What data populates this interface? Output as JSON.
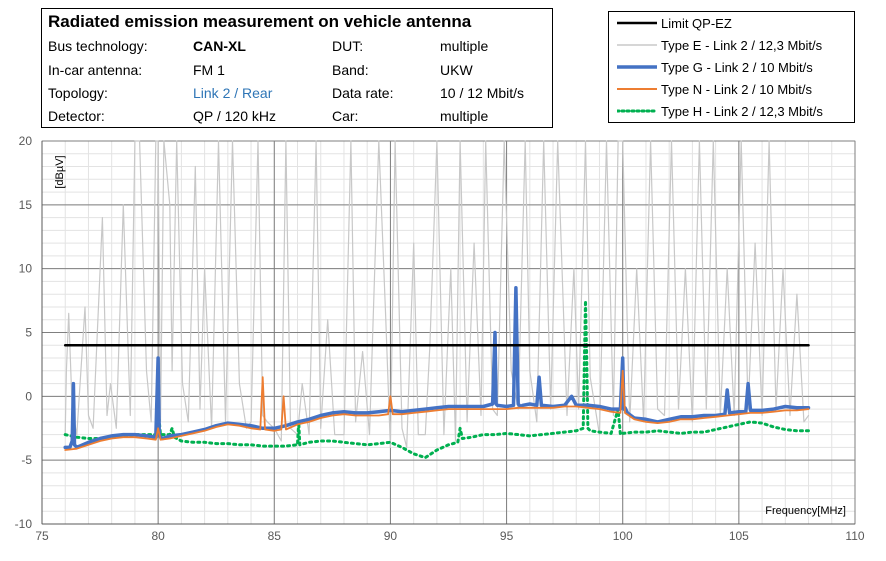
{
  "info": {
    "title": "Radiated emission measurement on vehicle antenna",
    "rows": [
      {
        "label": "Bus technology:",
        "value": "CAN-XL",
        "label2": "DUT:",
        "value2": "multiple"
      },
      {
        "label": "In-car antenna:",
        "value": "FM 1",
        "label2": "Band:",
        "value2": "UKW"
      },
      {
        "label": "Topology:",
        "value": "Link 2 / Rear",
        "label2": "Data rate:",
        "value2": "10 / 12 Mbit/s"
      },
      {
        "label": "Detector:",
        "value": "QP / 120 kHz",
        "label2": "Car:",
        "value2": "multiple"
      }
    ]
  },
  "legend": [
    {
      "label": "Limit QP-EZ"
    },
    {
      "label": "Type E - Link 2 / 12,3 Mbit/s"
    },
    {
      "label": "Type G - Link 2 / 10 Mbit/s"
    },
    {
      "label": "Type N - Link 2 / 10 Mbit/s"
    },
    {
      "label": "Type H - Link 2 / 12,3 Mbit/s"
    }
  ],
  "chart_data": {
    "type": "line",
    "title": "Radiated emission measurement on vehicle antenna",
    "xlabel": "Frequency[MHz]",
    "ylabel": "[dBµV]",
    "xlim": [
      75,
      110
    ],
    "ylim": [
      -10,
      20
    ],
    "xticks": [
      75,
      80,
      85,
      90,
      95,
      100,
      105,
      110
    ],
    "yticks": [
      -10,
      -5,
      0,
      5,
      10,
      15,
      20
    ],
    "grid": true,
    "legend_position": "top-right",
    "series": [
      {
        "name": "Limit QP-EZ",
        "color": "#000000",
        "style": "solid",
        "x": [
          76,
          108
        ],
        "y": [
          4,
          4
        ]
      },
      {
        "name": "Type E - Link 2 / 12,3 Mbit/s",
        "color": "#c8c8c8",
        "style": "solid",
        "x": [
          76.0,
          76.05,
          76.15,
          76.3,
          76.5,
          76.85,
          77.0,
          77.2,
          77.6,
          77.8,
          77.95,
          78.2,
          78.5,
          78.8,
          79.0,
          79.2,
          79.5,
          79.7,
          79.9,
          80.0,
          80.1,
          80.25,
          80.5,
          80.6,
          80.8,
          81.05,
          81.3,
          81.6,
          81.8,
          82.0,
          82.3,
          82.6,
          82.9,
          83.2,
          83.5,
          83.8,
          84.0,
          84.3,
          84.5,
          84.7,
          85.0,
          85.3,
          85.5,
          85.7,
          86.0,
          86.2,
          86.5,
          86.8,
          87.0,
          87.3,
          87.6,
          88.0,
          88.3,
          88.5,
          88.8,
          89.1,
          89.5,
          89.8,
          90.0,
          90.2,
          90.5,
          90.7,
          91.0,
          91.2,
          91.5,
          91.7,
          92.0,
          92.3,
          92.6,
          92.8,
          93.0,
          93.3,
          93.6,
          93.9,
          94.1,
          94.4,
          94.6,
          94.9,
          95.2,
          95.5,
          95.8,
          96.0,
          96.3,
          96.6,
          96.9,
          97.2,
          97.6,
          97.9,
          98.1,
          98.4,
          98.6,
          99.0,
          99.3,
          99.6,
          99.8,
          100.0,
          100.3,
          100.6,
          100.9,
          101.2,
          101.5,
          101.8,
          102.1,
          102.4,
          102.7,
          103.0,
          103.3,
          103.6,
          103.9,
          104.2,
          104.5,
          104.8,
          105.1,
          105.4,
          105.7,
          106.0,
          106.3,
          106.6,
          106.9,
          107.2,
          107.5,
          107.8,
          108.0
        ],
        "y": [
          -3.0,
          2.0,
          6.5,
          -1.0,
          -3.0,
          7.0,
          -1.5,
          -2.5,
          14.0,
          -1.5,
          1.0,
          -2.5,
          15.0,
          -1.5,
          20.0,
          20.0,
          2.0,
          -2.0,
          20.0,
          20.0,
          -2.0,
          20.0,
          15.0,
          2.0,
          20.0,
          1.0,
          -2.0,
          18.0,
          -1.0,
          10.0,
          -2.5,
          20.0,
          -2.0,
          20.0,
          1.0,
          -2.5,
          -2.0,
          20.0,
          -1.5,
          -2.0,
          -2.5,
          -3.5,
          20.0,
          -2.5,
          -3.0,
          1.0,
          -3.0,
          20.0,
          -2.5,
          6.0,
          -3.0,
          -3.0,
          20.0,
          -2.0,
          3.5,
          -3.0,
          20.0,
          6.0,
          -4.0,
          20.0,
          -2.5,
          -4.0,
          12.0,
          -3.0,
          -3.0,
          4.0,
          20.0,
          -3.0,
          10.0,
          -3.5,
          20.0,
          -2.0,
          12.0,
          -1.5,
          20.0,
          -1.0,
          -1.5,
          20.0,
          2.0,
          -1.0,
          20.0,
          2.0,
          -2.0,
          20.0,
          -1.0,
          20.0,
          -1.5,
          10.0,
          -1.0,
          20.0,
          1.5,
          -3.0,
          20.0,
          -1.5,
          20.0,
          20.0,
          -2.0,
          10.0,
          -2.0,
          20.0,
          -1.0,
          -1.5,
          20.0,
          -1.0,
          10.0,
          -2.0,
          20.0,
          -1.0,
          20.0,
          -1.5,
          10.0,
          -1.5,
          20.0,
          -1.0,
          12.0,
          -1.5,
          20.0,
          -1.0,
          10.0,
          -1.5,
          8.0,
          -2.0,
          -1.5
        ]
      },
      {
        "name": "Type G - Link 2 / 10 Mbit/s",
        "color": "#4472c4",
        "style": "solid",
        "x": [
          76.0,
          76.2,
          76.3,
          76.35,
          76.4,
          76.5,
          77.0,
          77.5,
          78.0,
          78.5,
          79.0,
          79.5,
          79.9,
          80.0,
          80.05,
          80.1,
          80.2,
          80.5,
          81.0,
          81.5,
          82.0,
          82.5,
          83.0,
          83.5,
          84.0,
          84.5,
          85.0,
          85.5,
          86.0,
          86.5,
          87.0,
          87.5,
          88.0,
          88.5,
          89.0,
          89.5,
          90.0,
          90.5,
          91.0,
          91.5,
          92.0,
          92.5,
          93.0,
          93.5,
          94.0,
          94.4,
          94.5,
          94.55,
          94.6,
          95.0,
          95.3,
          95.4,
          95.5,
          95.6,
          95.7,
          96.0,
          96.3,
          96.4,
          96.5,
          97.0,
          97.5,
          97.8,
          98.0,
          98.5,
          99.0,
          99.5,
          99.9,
          100.0,
          100.05,
          100.1,
          100.2,
          100.5,
          101.0,
          101.5,
          102.0,
          102.5,
          103.0,
          103.5,
          104.0,
          104.4,
          104.5,
          104.6,
          105.0,
          105.3,
          105.4,
          105.5,
          106.0,
          106.5,
          107.0,
          107.5,
          108.0
        ],
        "y": [
          -4.0,
          -4.0,
          -3.5,
          1.0,
          -3.8,
          -4.0,
          -3.6,
          -3.3,
          -3.1,
          -3.0,
          -3.0,
          -3.1,
          -3.2,
          3.0,
          -3.0,
          -3.2,
          -3.3,
          -3.1,
          -3.0,
          -2.8,
          -2.6,
          -2.3,
          -2.1,
          -2.2,
          -2.3,
          -2.5,
          -2.5,
          -2.3,
          -2.0,
          -1.8,
          -1.5,
          -1.3,
          -1.2,
          -1.3,
          -1.3,
          -1.2,
          -1.1,
          -1.2,
          -1.1,
          -1.0,
          -0.9,
          -0.8,
          -0.8,
          -0.8,
          -0.8,
          -0.6,
          5.0,
          -0.6,
          -0.7,
          -0.8,
          -0.7,
          8.5,
          -0.6,
          -0.8,
          -0.7,
          -0.6,
          -0.7,
          1.5,
          -0.7,
          -0.8,
          -0.7,
          0.0,
          -0.7,
          -0.7,
          -0.8,
          -1.0,
          -1.0,
          3.0,
          -1.0,
          -0.9,
          -1.3,
          -1.7,
          -1.8,
          -2.0,
          -1.8,
          -1.6,
          -1.6,
          -1.5,
          -1.5,
          -1.4,
          0.5,
          -1.3,
          -1.2,
          -1.2,
          1.0,
          -1.1,
          -1.1,
          -1.0,
          -0.8,
          -0.9,
          -0.9
        ]
      },
      {
        "name": "Type N - Link 2 / 10 Mbit/s",
        "color": "#ed7d31",
        "style": "solid",
        "x": [
          76.0,
          76.5,
          77.0,
          77.5,
          78.0,
          78.5,
          79.0,
          79.5,
          79.9,
          80.0,
          80.1,
          80.5,
          81.0,
          81.5,
          82.0,
          82.5,
          83.0,
          83.5,
          84.0,
          84.4,
          84.5,
          84.6,
          85.0,
          85.3,
          85.4,
          85.5,
          86.0,
          86.5,
          87.0,
          87.5,
          88.0,
          88.5,
          89.0,
          89.5,
          89.9,
          90.0,
          90.1,
          90.5,
          91.0,
          91.5,
          92.0,
          92.5,
          93.0,
          93.5,
          94.0,
          94.5,
          95.0,
          95.5,
          96.0,
          96.5,
          97.0,
          97.5,
          98.0,
          98.5,
          99.0,
          99.5,
          99.9,
          100.0,
          100.1,
          100.5,
          101.0,
          101.5,
          102.0,
          102.5,
          103.0,
          103.5,
          104.0,
          104.5,
          105.0,
          105.5,
          106.0,
          106.5,
          107.0,
          107.5,
          108.0
        ],
        "y": [
          -4.2,
          -4.1,
          -3.8,
          -3.5,
          -3.3,
          -3.2,
          -3.2,
          -3.3,
          -3.4,
          -2.5,
          -3.4,
          -3.3,
          -3.1,
          -2.9,
          -2.7,
          -2.4,
          -2.2,
          -2.3,
          -2.5,
          -2.6,
          1.5,
          -2.6,
          -2.7,
          -2.6,
          0.0,
          -2.6,
          -2.2,
          -2.0,
          -1.7,
          -1.5,
          -1.4,
          -1.5,
          -1.5,
          -1.5,
          -1.4,
          0.0,
          -1.4,
          -1.4,
          -1.3,
          -1.2,
          -1.1,
          -1.0,
          -1.0,
          -1.0,
          -1.0,
          -1.0,
          -1.0,
          -0.9,
          -0.9,
          -0.9,
          -0.9,
          -0.8,
          -0.8,
          -0.9,
          -1.0,
          -1.2,
          -1.3,
          2.0,
          -1.3,
          -1.8,
          -2.0,
          -2.1,
          -2.0,
          -1.8,
          -1.8,
          -1.7,
          -1.6,
          -1.5,
          -1.4,
          -1.3,
          -1.3,
          -1.2,
          -1.1,
          -1.1,
          -1.0
        ]
      },
      {
        "name": "Type H - Link 2 / 12,3 Mbit/s",
        "color": "#00b050",
        "style": "dotted",
        "x": [
          76.0,
          76.5,
          77.0,
          77.5,
          78.0,
          78.5,
          79.0,
          79.5,
          79.9,
          80.0,
          80.1,
          80.5,
          80.6,
          80.7,
          81.0,
          81.5,
          82.0,
          82.5,
          83.0,
          83.5,
          84.0,
          84.5,
          85.0,
          85.5,
          86.0,
          86.05,
          86.1,
          86.5,
          87.0,
          87.5,
          88.0,
          88.5,
          89.0,
          89.5,
          90.0,
          90.5,
          91.0,
          91.5,
          92.0,
          92.5,
          92.9,
          93.0,
          93.1,
          93.5,
          94.0,
          94.5,
          95.0,
          95.5,
          96.0,
          96.5,
          97.0,
          97.5,
          98.0,
          98.3,
          98.4,
          98.45,
          98.5,
          98.6,
          99.0,
          99.5,
          99.8,
          99.9,
          100.0,
          100.5,
          101.0,
          101.5,
          102.0,
          102.5,
          103.0,
          103.5,
          104.0,
          104.5,
          105.0,
          105.5,
          106.0,
          106.5,
          107.0,
          107.5,
          108.0
        ],
        "y": [
          -3.0,
          -3.2,
          -3.3,
          -3.3,
          -3.2,
          -3.1,
          -3.0,
          -3.0,
          -3.0,
          -1.0,
          -3.0,
          -3.0,
          -2.5,
          -3.2,
          -3.5,
          -3.6,
          -3.6,
          -3.7,
          -3.7,
          -3.8,
          -3.8,
          -3.9,
          -3.9,
          -3.9,
          -3.8,
          -2.0,
          -3.8,
          -3.6,
          -3.5,
          -3.5,
          -3.6,
          -3.7,
          -3.8,
          -3.7,
          -3.6,
          -4.0,
          -4.5,
          -4.8,
          -4.2,
          -3.8,
          -3.6,
          -2.5,
          -3.3,
          -3.2,
          -3.0,
          -3.0,
          -2.9,
          -3.0,
          -3.1,
          -3.0,
          -2.9,
          -2.8,
          -2.7,
          -2.5,
          7.5,
          3.0,
          -2.5,
          -2.7,
          -2.8,
          -2.9,
          -1.0,
          -3.0,
          -2.9,
          -2.8,
          -2.8,
          -2.7,
          -2.8,
          -2.9,
          -2.8,
          -2.8,
          -2.6,
          -2.4,
          -2.2,
          -2.0,
          -2.1,
          -2.4,
          -2.6,
          -2.7,
          -2.7
        ]
      }
    ]
  }
}
